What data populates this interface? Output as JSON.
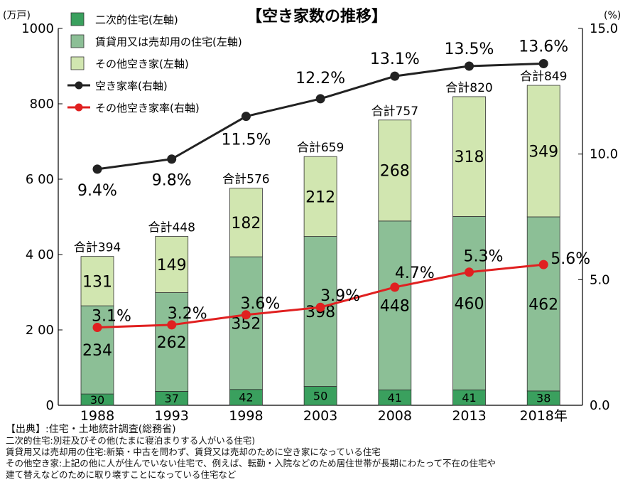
{
  "chart_data": {
    "type": "bar",
    "title": "【空き家数の推移】",
    "left_unit": "(万戸)",
    "right_unit": "(%)",
    "categories": [
      "1988",
      "1993",
      "1998",
      "2003",
      "2008",
      "2013",
      "2018年"
    ],
    "left_ticks": [
      "1000",
      "800",
      "6 00",
      "4 00",
      "2 00",
      "0"
    ],
    "right_ticks": [
      "15.0",
      "10.0",
      "5.0",
      "0.0"
    ],
    "left_ylim": [
      0,
      1000
    ],
    "right_ylim": [
      0,
      15
    ],
    "stacked_series": [
      {
        "name": "二次的住宅(左軸)",
        "color": "#3aa05e",
        "values": [
          30,
          37,
          42,
          50,
          41,
          41,
          38
        ]
      },
      {
        "name": "賃貸用又は売却用の住宅(左軸)",
        "color": "#8cbf96",
        "values": [
          234,
          262,
          352,
          398,
          448,
          460,
          462
        ]
      },
      {
        "name": "その他空き家(左軸)",
        "color": "#d1e6b0",
        "values": [
          131,
          149,
          182,
          212,
          268,
          318,
          349
        ]
      }
    ],
    "totals": [
      "合計394",
      "合計448",
      "合計576",
      "合計659",
      "合計757",
      "合計820",
      "合計849"
    ],
    "line_series": [
      {
        "name": "空き家率(右軸)",
        "color": "#222222",
        "values": [
          9.4,
          9.8,
          11.5,
          12.2,
          13.1,
          13.5,
          13.6
        ],
        "labels": [
          "9.4%",
          "9.8%",
          "11.5%",
          "12.2%",
          "13.1%",
          "13.5%",
          "13.6%"
        ]
      },
      {
        "name": "その他空き家率(右軸)",
        "color": "#e02020",
        "values": [
          3.1,
          3.2,
          3.6,
          3.9,
          4.7,
          5.3,
          5.6
        ],
        "labels": [
          "3.1%",
          "3.2%",
          "3.6%",
          "3.9%",
          "4.7%",
          "5.3%",
          "5.6%"
        ]
      }
    ]
  },
  "notes": {
    "source": "【出典】:住宅・土地統計調査(総務省)",
    "line1": "二次的住宅:別荘及びその他(たまに寝泊まりする人がいる住宅)",
    "line2": "賃貸用又は売却用の住宅:新築・中古を問わず、賃貸又は売却のために空き家になっている住宅",
    "line3": "その他空き家:上記の他に人が住んでいない住宅で、例えば、転勤・入院などのため居住世帯が長期にわたって不在の住宅や",
    "line4": "建て替えなどのために取り壊すことになっている住宅など"
  }
}
